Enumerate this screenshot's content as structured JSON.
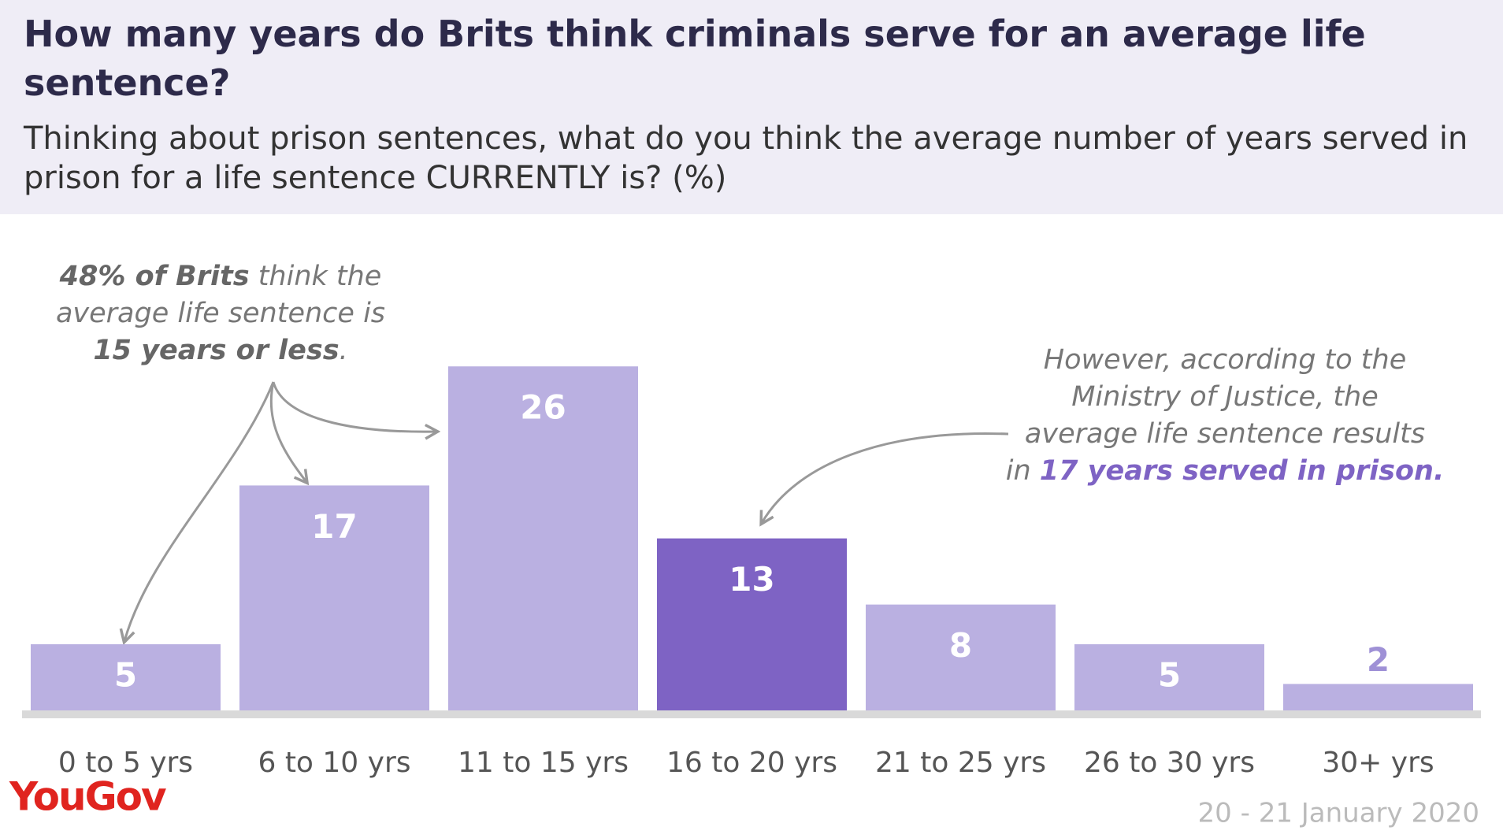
{
  "chart_data": {
    "type": "bar",
    "title": "How many years do Brits think criminals serve for an average life sentence?",
    "subtitle": "Thinking about prison sentences, what do you think the average number of years served in prison for a life sentence CURRENTLY is? (%)",
    "categories": [
      "0 to 5 yrs",
      "6 to 10 yrs",
      "11 to 15 yrs",
      "16 to 20 yrs",
      "21 to 25 yrs",
      "26 to 30 yrs",
      "30+ yrs"
    ],
    "values": [
      5,
      17,
      26,
      13,
      8,
      5,
      2
    ],
    "colors": [
      "#bab0e1",
      "#bab0e1",
      "#bab0e1",
      "#7e63c4",
      "#bab0e1",
      "#bab0e1",
      "#bab0e1"
    ],
    "annotations": [
      {
        "lines": [
          [
            {
              "text": "48% of Brits",
              "bold": true
            },
            {
              "text": " think the",
              "bold": false
            }
          ],
          [
            {
              "text": "average life sentence is",
              "bold": false
            }
          ],
          [
            {
              "text": "15 years or less",
              "bold": true
            },
            {
              "text": ".",
              "bold": false
            }
          ]
        ]
      },
      {
        "lines": [
          [
            {
              "text": "However, according to the",
              "bold": false
            }
          ],
          [
            {
              "text": "Ministry of Justice, the",
              "bold": false
            }
          ],
          [
            {
              "text": "average life sentence results",
              "bold": false
            }
          ],
          [
            {
              "text": "in ",
              "bold": false
            },
            {
              "text": "17 years served in prison.",
              "bold": true,
              "color": "#7e63c4"
            }
          ]
        ]
      }
    ],
    "source": "YouGov",
    "date": "20 - 21 January 2020"
  }
}
